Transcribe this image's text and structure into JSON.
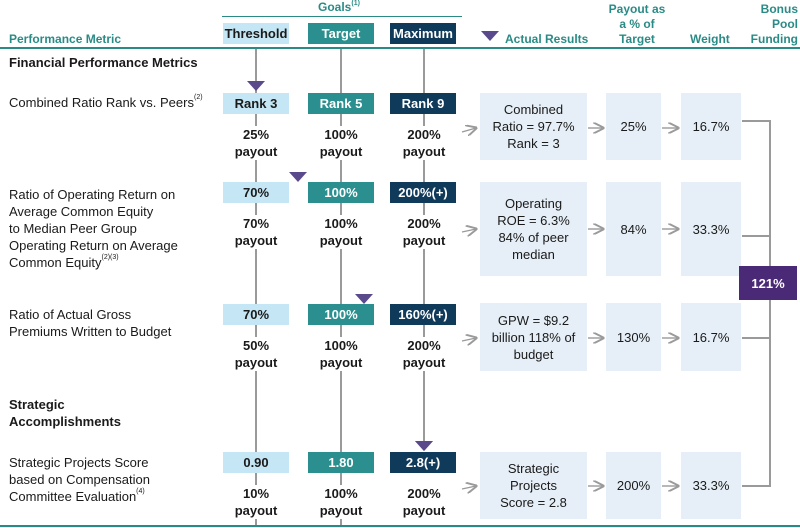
{
  "header": {
    "performance_metric": "Performance Metric",
    "goals": "Goals",
    "goals_note": "(1)",
    "threshold": "Threshold",
    "target": "Target",
    "maximum": "Maximum",
    "actual_results": "Actual Results",
    "payout_pct_l1": "Payout as",
    "payout_pct_l2": "a % of",
    "payout_pct_l3": "Target",
    "weight": "Weight",
    "bonus_l1": "Bonus",
    "bonus_l2": "Pool",
    "bonus_l3": "Funding"
  },
  "sections": {
    "financial": "Financial Performance Metrics",
    "strategic_l1": "Strategic",
    "strategic_l2": "Accomplishments"
  },
  "rows": [
    {
      "metric_lines": [
        "Combined Ratio Rank vs. Peers"
      ],
      "metric_note": "(2)",
      "threshold": "Rank 3",
      "target": "Rank 5",
      "maximum": "Rank 9",
      "threshold_payout": [
        "25%",
        "payout"
      ],
      "target_payout": [
        "100%",
        "payout"
      ],
      "maximum_payout": [
        "200%",
        "payout"
      ],
      "actual": [
        "Combined",
        "Ratio = 97.7%",
        "Rank = 3"
      ],
      "payout_pct": "25%",
      "weight": "16.7%"
    },
    {
      "metric_lines": [
        "Ratio of Operating Return on",
        "Average Common Equity",
        "to Median Peer Group",
        "Operating Return on Average",
        "Common Equity"
      ],
      "metric_note": "(2)(3)",
      "threshold": "70%",
      "target": "100%",
      "maximum": "200%(+)",
      "threshold_payout": [
        "70%",
        "payout"
      ],
      "target_payout": [
        "100%",
        "payout"
      ],
      "maximum_payout": [
        "200%",
        "payout"
      ],
      "actual": [
        "Operating",
        "ROE = 6.3%",
        "84% of peer",
        "median"
      ],
      "payout_pct": "84%",
      "weight": "33.3%"
    },
    {
      "metric_lines": [
        "Ratio of Actual Gross",
        "Premiums Written to Budget"
      ],
      "metric_note": "",
      "threshold": "70%",
      "target": "100%",
      "maximum": "160%(+)",
      "threshold_payout": [
        "50%",
        "payout"
      ],
      "target_payout": [
        "100%",
        "payout"
      ],
      "maximum_payout": [
        "200%",
        "payout"
      ],
      "actual": [
        "GPW = $9.2",
        "billion 118% of",
        "budget"
      ],
      "payout_pct": "130%",
      "weight": "16.7%"
    },
    {
      "metric_lines": [
        "Strategic Projects Score",
        "based on Compensation",
        "Committee Evaluation"
      ],
      "metric_note": "(4)",
      "threshold": "0.90",
      "target": "1.80",
      "maximum": "2.8(+)",
      "threshold_payout": [
        "10%",
        "payout"
      ],
      "target_payout": [
        "100%",
        "payout"
      ],
      "maximum_payout": [
        "200%",
        "payout"
      ],
      "actual": [
        "Strategic",
        "Projects",
        "Score = 2.8"
      ],
      "payout_pct": "200%",
      "weight": "33.3%"
    }
  ],
  "bonus_total": "121%",
  "colors": {
    "teal_header": "#2a8b86",
    "threshold_bg": "#c5e6f4",
    "target_bg": "#2c8f8f",
    "maximum_bg": "#0f3a5a",
    "marker": "#5b4a8b",
    "panel_bg": "#e6eff7"
  }
}
